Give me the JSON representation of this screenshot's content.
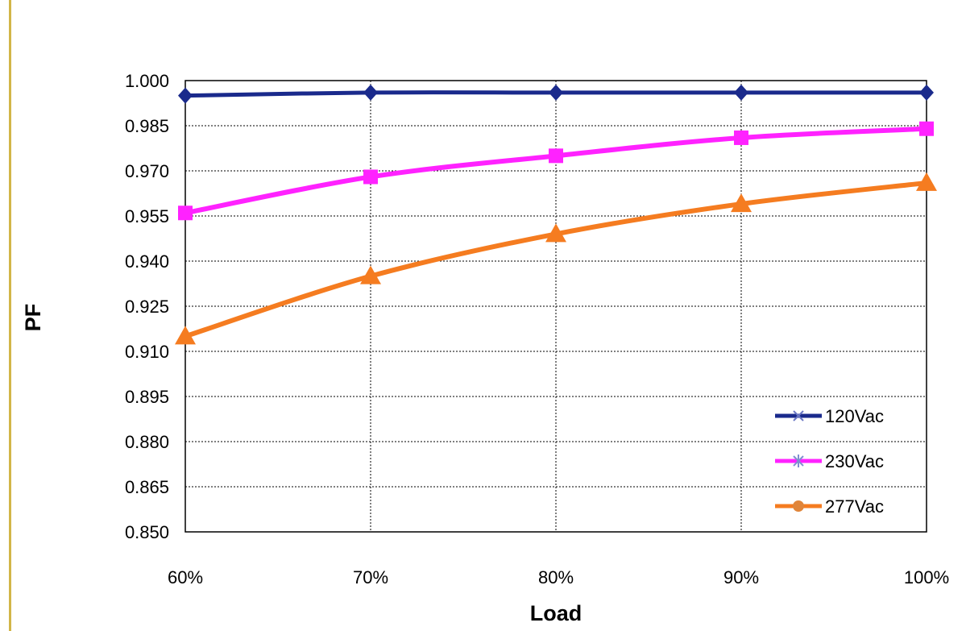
{
  "chart_data": {
    "type": "line",
    "categories": [
      "60%",
      "70%",
      "80%",
      "90%",
      "100%"
    ],
    "xlabel": "Load",
    "ylabel": "PF",
    "ylim": [
      0.85,
      1.0
    ],
    "yticks": [
      "0.850",
      "0.865",
      "0.880",
      "0.895",
      "0.910",
      "0.925",
      "0.940",
      "0.955",
      "0.970",
      "0.985",
      "1.000"
    ],
    "grid": "on",
    "legend_position": "bottom-right",
    "series": [
      {
        "name": "120Vac",
        "values": [
          0.995,
          0.996,
          0.996,
          0.996,
          0.996
        ],
        "color": "#1a2a8c",
        "marker": "diamond"
      },
      {
        "name": "230Vac",
        "values": [
          0.956,
          0.968,
          0.975,
          0.981,
          0.984
        ],
        "color": "#ff22ff",
        "marker": "square"
      },
      {
        "name": "277Vac",
        "values": [
          0.915,
          0.935,
          0.949,
          0.959,
          0.966
        ],
        "color": "#f57c20",
        "marker": "triangle"
      }
    ]
  }
}
